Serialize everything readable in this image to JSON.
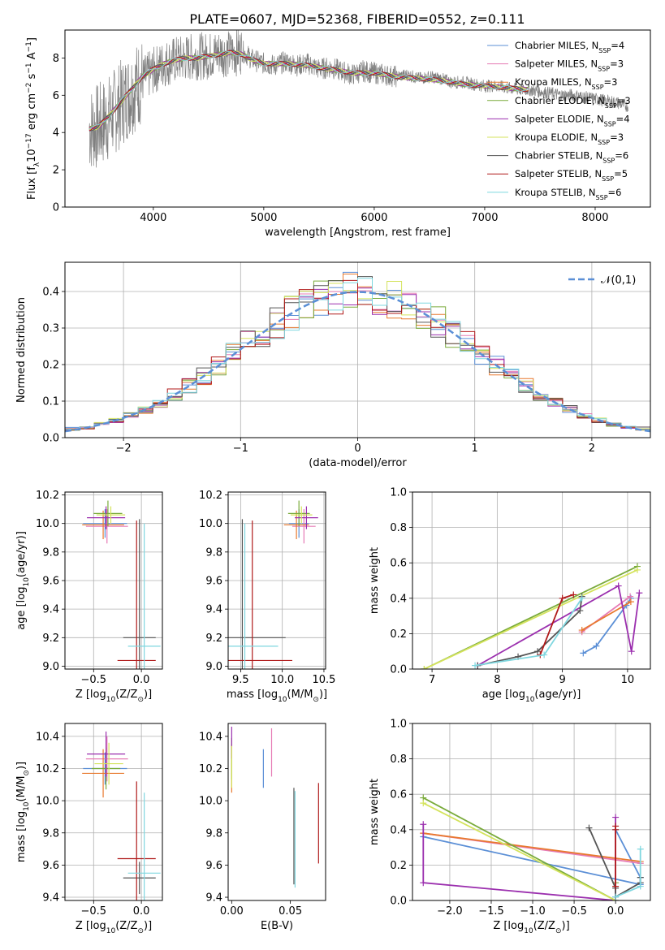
{
  "figure": {
    "title": "PLATE=0607, MJD=52368, FIBERID=0552, z=0.111"
  },
  "models": [
    {
      "label": "Chabrier MILES, N$_{SSP}$=4",
      "base": "Chabrier MILES, N",
      "sub": "SSP",
      "n": "=4",
      "color": "#5b8fd6"
    },
    {
      "label": "Salpeter MILES, N$_{SSP}$=3",
      "base": "Salpeter MILES, N",
      "sub": "SSP",
      "n": "=3",
      "color": "#e67bb5"
    },
    {
      "label": "Kroupa MILES, N$_{SSP}$=3",
      "base": "Kroupa MILES, N",
      "sub": "SSP",
      "n": "=3",
      "color": "#e8792e"
    },
    {
      "label": "Chabrier ELODIE, N$_{SSP}$=3",
      "base": "Chabrier ELODIE, N",
      "sub": "SSP",
      "n": "=3",
      "color": "#7aab3b"
    },
    {
      "label": "Salpeter ELODIE, N$_{SSP}$=4",
      "base": "Salpeter ELODIE, N",
      "sub": "SSP",
      "n": "=4",
      "color": "#9b2fae"
    },
    {
      "label": "Kroupa ELODIE, N$_{SSP}$=3",
      "base": "Kroupa ELODIE, N",
      "sub": "SSP",
      "n": "=3",
      "color": "#d4e35c"
    },
    {
      "label": "Chabrier STELIB, N$_{SSP}$=6",
      "base": "Chabrier STELIB, N",
      "sub": "SSP",
      "n": "=6",
      "color": "#555555"
    },
    {
      "label": "Salpeter STELIB, N$_{SSP}$=5",
      "base": "Salpeter STELIB, N",
      "sub": "SSP",
      "n": "=5",
      "color": "#b01a1a"
    },
    {
      "label": "Kroupa STELIB, N$_{SSP}$=6",
      "base": "Kroupa STELIB, N",
      "sub": "SSP",
      "n": "=6",
      "color": "#7fd7df"
    }
  ],
  "chart_data": [
    {
      "id": "spectrum",
      "type": "line",
      "xlabel": "wavelength [Angstrom, rest frame]",
      "ylabel": "Flux [f$_\\lambda$10$^{-17}$ erg cm$^{-2}$ s$^{-1}$ A$^{-1}$]",
      "xlim": [
        3200,
        8500
      ],
      "ylim": [
        0,
        9.5
      ],
      "xticks": [
        4000,
        5000,
        6000,
        7000,
        8000
      ],
      "yticks": [
        0,
        2,
        4,
        6,
        8
      ],
      "legend": "upper right",
      "grid": false,
      "data_color": "#808080",
      "data_x": [
        3420,
        3500,
        3600,
        3700,
        3800,
        3900,
        4000,
        4100,
        4200,
        4300,
        4400,
        4500,
        4600,
        4700,
        4800,
        4900,
        5000,
        5100,
        5200,
        5300,
        5400,
        5500,
        5600,
        5700,
        5800,
        5900,
        6000,
        6100,
        6200,
        6300,
        6400,
        6500,
        6600,
        6700,
        6800,
        6900,
        7000,
        7100,
        7200,
        7300,
        7400,
        7500,
        7600,
        7700,
        7800,
        7900,
        8000,
        8100,
        8200,
        8300
      ],
      "data_y": [
        4.2,
        4.3,
        4.8,
        5.5,
        6.2,
        6.8,
        7.3,
        7.7,
        7.9,
        8.0,
        8.1,
        8.1,
        8.3,
        8.2,
        8.4,
        7.9,
        7.7,
        7.6,
        7.8,
        7.6,
        7.7,
        7.4,
        7.5,
        7.3,
        7.1,
        7.3,
        7.2,
        7.1,
        7.0,
        7.1,
        6.9,
        7.0,
        6.9,
        6.7,
        6.7,
        6.6,
        6.5,
        6.5,
        6.4,
        6.3,
        6.3,
        6.2,
        6.1,
        6.0,
        6.0,
        5.9,
        5.8,
        5.7,
        5.6,
        5.4
      ],
      "model_x": [
        3420,
        3500,
        3600,
        3700,
        3800,
        3900,
        4000,
        4100,
        4200,
        4300,
        4400,
        4500,
        4600,
        4700,
        4800,
        4900,
        5000,
        5200,
        5400,
        5600,
        5800,
        6000,
        6200,
        6400,
        6600,
        6800,
        7000,
        7200,
        7400
      ],
      "model_y": [
        4.2,
        4.3,
        4.9,
        5.6,
        6.3,
        7.0,
        7.4,
        7.7,
        7.9,
        8.0,
        8.0,
        8.1,
        8.2,
        8.3,
        8.2,
        7.9,
        7.7,
        7.7,
        7.6,
        7.4,
        7.2,
        7.2,
        7.0,
        6.9,
        6.8,
        6.6,
        6.5,
        6.4,
        6.3
      ]
    },
    {
      "id": "residuals",
      "type": "line",
      "xlabel": "(data-model)/error",
      "ylabel": "Normed distribution",
      "xlim": [
        -2.5,
        2.5
      ],
      "ylim": [
        0,
        0.48
      ],
      "xticks": [
        -2,
        -1,
        0,
        1,
        2
      ],
      "yticks": [
        0.0,
        0.1,
        0.2,
        0.3,
        0.4
      ],
      "grid": true,
      "legend": "upper right",
      "gauss_label": "$\\mathcal{N}(0,1)$",
      "gauss_color": "#5b8fd6"
    },
    {
      "id": "age_vs_Z",
      "type": "scatter",
      "xlabel": "Z [log$_{10}$(Z/Z$_\\odot$)]",
      "ylabel": "age  [log$_{10}$(age/yr)]",
      "xlim": [
        -0.8,
        0.22
      ],
      "ylim": [
        8.98,
        10.22
      ],
      "xticks": [
        -0.5,
        0.0
      ],
      "yticks": [
        9.0,
        9.2,
        9.4,
        9.6,
        9.8,
        10.0,
        10.2
      ],
      "grid": true,
      "points": [
        {
          "x": -0.38,
          "y": 10.0,
          "xerr": 0.23,
          "yerr": 0.1
        },
        {
          "x": -0.36,
          "y": 9.98,
          "xerr": 0.22,
          "yerr": 0.12
        },
        {
          "x": -0.4,
          "y": 9.99,
          "xerr": 0.22,
          "yerr": 0.1
        },
        {
          "x": -0.35,
          "y": 10.07,
          "xerr": 0.15,
          "yerr": 0.09
        },
        {
          "x": -0.37,
          "y": 10.04,
          "xerr": 0.2,
          "yerr": 0.08
        },
        {
          "x": -0.32,
          "y": 10.06,
          "xerr": 0.15,
          "yerr": 0.06
        },
        {
          "x": -0.02,
          "y": 9.2,
          "xerr": 0.17,
          "yerr": 0.83
        },
        {
          "x": -0.05,
          "y": 9.04,
          "xerr": 0.2,
          "yerr": 0.98
        },
        {
          "x": 0.03,
          "y": 9.14,
          "xerr": 0.17,
          "yerr": 0.86
        }
      ]
    },
    {
      "id": "age_vs_mass",
      "type": "scatter",
      "xlabel": "mass [log$_{10}$(M/M$_\\odot$)]",
      "ylabel": "",
      "xlim": [
        9.35,
        10.52
      ],
      "ylim": [
        8.98,
        10.22
      ],
      "xticks": [
        9.5,
        10.0,
        10.5
      ],
      "yticks": [
        9.0,
        9.2,
        9.4,
        9.6,
        9.8,
        10.0,
        10.2
      ],
      "grid": true,
      "points": [
        {
          "x": 10.2,
          "y": 10.0,
          "xerr": 0.12,
          "yerr": 0.1
        },
        {
          "x": 10.26,
          "y": 9.98,
          "xerr": 0.14,
          "yerr": 0.12
        },
        {
          "x": 10.17,
          "y": 9.99,
          "xerr": 0.15,
          "yerr": 0.1
        },
        {
          "x": 10.2,
          "y": 10.07,
          "xerr": 0.13,
          "yerr": 0.09
        },
        {
          "x": 10.29,
          "y": 10.04,
          "xerr": 0.14,
          "yerr": 0.08
        },
        {
          "x": 10.23,
          "y": 10.06,
          "xerr": 0.13,
          "yerr": 0.06
        },
        {
          "x": 9.52,
          "y": 9.2,
          "xerr": 0.52,
          "yerr": 0.83
        },
        {
          "x": 9.64,
          "y": 9.04,
          "xerr": 0.48,
          "yerr": 0.98
        },
        {
          "x": 9.55,
          "y": 9.14,
          "xerr": 0.4,
          "yerr": 0.86
        }
      ]
    },
    {
      "id": "massweight_vs_age",
      "type": "line",
      "xlabel": "age  [log$_{10}$(age/yr)]",
      "ylabel": "mass weight",
      "xlim": [
        6.7,
        10.35
      ],
      "ylim": [
        0,
        1.0
      ],
      "xticks": [
        7,
        8,
        9,
        10
      ],
      "yticks": [
        0.0,
        0.2,
        0.4,
        0.6,
        0.8,
        1.0
      ],
      "grid": true,
      "series": [
        {
          "x": [
            9.32,
            9.52,
            9.98,
            10.05
          ],
          "y": [
            0.09,
            0.13,
            0.36,
            0.4
          ]
        },
        {
          "x": [
            9.3,
            10.04
          ],
          "y": [
            0.21,
            0.41
          ]
        },
        {
          "x": [
            9.3,
            10.05
          ],
          "y": [
            0.22,
            0.38
          ]
        },
        {
          "x": [
            6.88,
            10.15
          ],
          "y": [
            0.0,
            0.58
          ]
        },
        {
          "x": [
            7.7,
            9.86,
            10.06,
            10.18
          ],
          "y": [
            0.02,
            0.47,
            0.1,
            0.43
          ]
        },
        {
          "x": [
            6.88,
            10.15
          ],
          "y": [
            0.0,
            0.56
          ]
        },
        {
          "x": [
            7.7,
            8.32,
            8.62,
            9.27,
            9.3
          ],
          "y": [
            0.02,
            0.07,
            0.1,
            0.33,
            0.41
          ]
        },
        {
          "x": [
            8.66,
            9.0,
            9.17
          ],
          "y": [
            0.08,
            0.4,
            0.42
          ]
        },
        {
          "x": [
            7.66,
            8.72,
            9.3
          ],
          "y": [
            0.02,
            0.08,
            0.4
          ]
        }
      ]
    },
    {
      "id": "mass_vs_Z",
      "type": "scatter",
      "xlabel": "Z [log$_{10}$(Z/Z$_\\odot$)]",
      "ylabel": "mass [log$_{10}$(M/M$_\\odot$)]",
      "xlim": [
        -0.8,
        0.22
      ],
      "ylim": [
        9.38,
        10.48
      ],
      "xticks": [
        -0.5,
        0.0
      ],
      "yticks": [
        9.4,
        9.6,
        9.8,
        10.0,
        10.2,
        10.4
      ],
      "grid": true,
      "points": [
        {
          "x": -0.38,
          "y": 10.2,
          "xerr": 0.23,
          "yerr": 0.1
        },
        {
          "x": -0.36,
          "y": 10.26,
          "xerr": 0.22,
          "yerr": 0.14
        },
        {
          "x": -0.4,
          "y": 10.17,
          "xerr": 0.22,
          "yerr": 0.15
        },
        {
          "x": -0.37,
          "y": 10.2,
          "xerr": 0.15,
          "yerr": 0.13
        },
        {
          "x": -0.37,
          "y": 10.29,
          "xerr": 0.2,
          "yerr": 0.14
        },
        {
          "x": -0.34,
          "y": 10.23,
          "xerr": 0.15,
          "yerr": 0.13
        },
        {
          "x": -0.02,
          "y": 9.52,
          "xerr": 0.17,
          "yerr": 0.1
        },
        {
          "x": -0.05,
          "y": 9.64,
          "xerr": 0.2,
          "yerr": 0.48
        },
        {
          "x": 0.03,
          "y": 9.55,
          "xerr": 0.17,
          "yerr": 0.5
        }
      ]
    },
    {
      "id": "mass_vs_ebv",
      "type": "scatter",
      "xlabel": "E(B-V)",
      "ylabel": "",
      "xlim": [
        -0.003,
        0.08
      ],
      "ylim": [
        9.38,
        10.48
      ],
      "xticks": [
        0.0,
        0.05
      ],
      "yticks": [
        9.4,
        9.6,
        9.8,
        10.0,
        10.2,
        10.4
      ],
      "grid": false,
      "points": [
        {
          "x": 0.027,
          "y": 10.2,
          "yerr": 0.12
        },
        {
          "x": 0.034,
          "y": 10.3,
          "yerr": 0.15
        },
        {
          "x": 0.0,
          "y": 10.2,
          "yerr": 0.15
        },
        {
          "x": 0.0,
          "y": 10.26,
          "yerr": 0.13
        },
        {
          "x": 0.0,
          "y": 10.36,
          "yerr": 0.1
        },
        {
          "x": 0.0,
          "y": 10.21,
          "yerr": 0.13
        },
        {
          "x": 0.053,
          "y": 9.78,
          "yerr": 0.3
        },
        {
          "x": 0.074,
          "y": 9.86,
          "yerr": 0.25
        },
        {
          "x": 0.054,
          "y": 9.76,
          "yerr": 0.3
        }
      ]
    },
    {
      "id": "massweight_vs_Z",
      "type": "line",
      "xlabel": "Z [log$_{10}$(Z/Z$_\\odot$)]",
      "ylabel": "mass weight",
      "xlim": [
        -2.45,
        0.42
      ],
      "ylim": [
        0,
        1.0
      ],
      "xticks": [
        -2.0,
        -1.5,
        -1.0,
        -0.5,
        0.0
      ],
      "yticks": [
        0.0,
        0.2,
        0.4,
        0.6,
        0.8,
        1.0
      ],
      "grid": true,
      "series": [
        {
          "x": [
            -2.32,
            0.3,
            0.3,
            0.0
          ],
          "y": [
            0.36,
            0.09,
            0.13,
            0.4
          ]
        },
        {
          "x": [
            -2.32,
            0.3
          ],
          "y": [
            0.38,
            0.21
          ]
        },
        {
          "x": [
            -2.32,
            0.3
          ],
          "y": [
            0.38,
            0.22
          ]
        },
        {
          "x": [
            -2.32,
            0.0,
            0.0
          ],
          "y": [
            0.58,
            0.0,
            0.1
          ]
        },
        {
          "x": [
            -2.32,
            -2.32,
            0.0,
            0.0
          ],
          "y": [
            0.43,
            0.1,
            0.0,
            0.47
          ]
        },
        {
          "x": [
            -2.32,
            0.0
          ],
          "y": [
            0.55,
            0.0
          ]
        },
        {
          "x": [
            -0.32,
            0.0,
            0.0,
            0.3,
            0.3
          ],
          "y": [
            0.41,
            0.07,
            0.02,
            0.1,
            0.13
          ]
        },
        {
          "x": [
            0.0,
            0.0,
            0.0
          ],
          "y": [
            0.08,
            0.4,
            0.42
          ]
        },
        {
          "x": [
            0.0,
            0.3,
            0.3
          ],
          "y": [
            0.02,
            0.08,
            0.29
          ]
        }
      ]
    }
  ]
}
